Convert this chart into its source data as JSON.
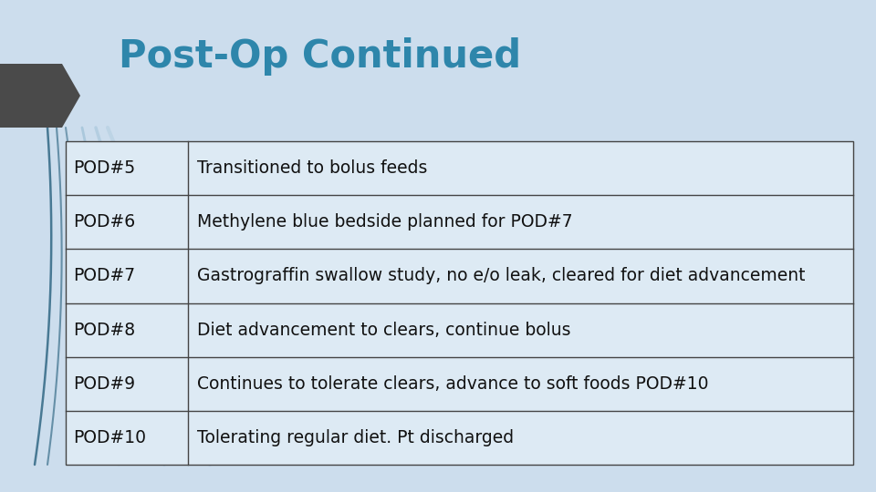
{
  "title": "Post-Op Continued",
  "title_color": "#2E86AB",
  "title_fontsize": 30,
  "background_color": "#ccdded",
  "table_rows": [
    [
      "POD#5",
      "Transitioned to bolus feeds"
    ],
    [
      "POD#6",
      "Methylene blue bedside planned for POD#7"
    ],
    [
      "POD#7",
      "Gastrograffin swallow study, no e/o leak, cleared for diet advancement"
    ],
    [
      "POD#8",
      "Diet advancement to clears, continue bolus"
    ],
    [
      "POD#9",
      "Continues to tolerate clears, advance to soft foods POD#10"
    ],
    [
      "POD#10",
      "Tolerating regular diet. Pt discharged"
    ]
  ],
  "cell_text_color": "#111111",
  "cell_fontsize": 13.5,
  "cell_bg_color": "#ddeaf4",
  "border_color": "#444444",
  "border_lw": 1.0,
  "chevron_color": "#4a4a4a",
  "deco_line_color": "#3a6e8a",
  "deco_line_color2": "#8ab4cc"
}
